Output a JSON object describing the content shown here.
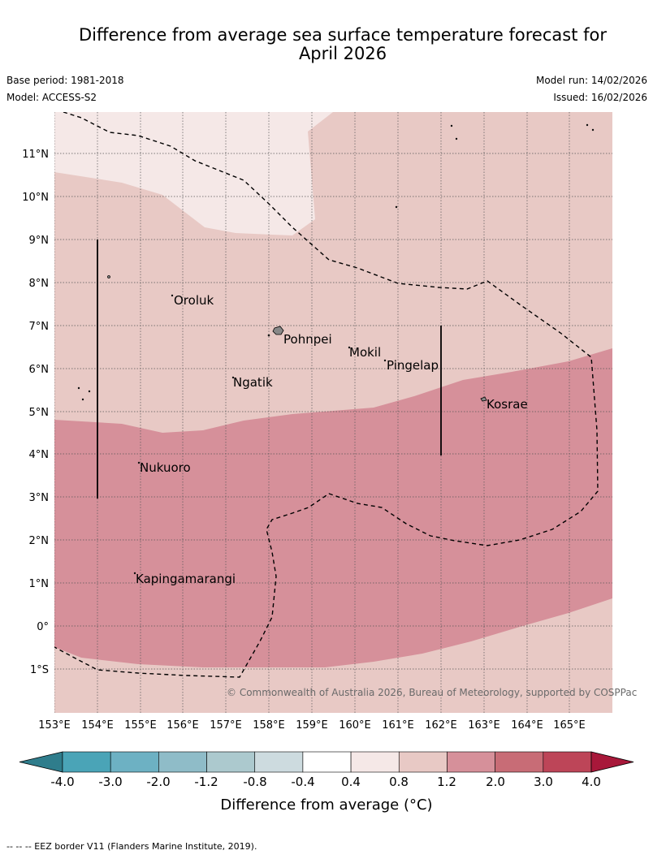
{
  "title_line1": "Difference from average sea surface temperature forecast for",
  "title_line2": "April 2026",
  "base_period": "Base period: 1981-2018",
  "model": "Model: ACCESS-S2",
  "model_run": "Model run: 14/02/2026",
  "issued": "Issued: 16/02/2026",
  "copyright": "© Commonwealth of Australia 2026, Bureau of Meteorology, supported by COSPPac",
  "lon_labels": [
    "153°E",
    "154°E",
    "155°E",
    "156°E",
    "157°E",
    "158°E",
    "159°E",
    "160°E",
    "161°E",
    "162°E",
    "163°E",
    "164°E",
    "165°E"
  ],
  "lat_labels": [
    "11°N",
    "10°N",
    "9°N",
    "8°N",
    "7°N",
    "6°N",
    "5°N",
    "4°N",
    "3°N",
    "2°N",
    "1°N",
    "0°",
    "1°S"
  ],
  "places": [
    "Oroluk",
    "Pohnpei",
    "Mokil",
    "Pingelap",
    "Ngatik",
    "Kosrae",
    "Nukuoro",
    "Kapingamarangi"
  ],
  "colorbar": {
    "label": "Difference from average (°C)",
    "ticks": [
      "-4.0",
      "-3.0",
      "-2.0",
      "-1.2",
      "-0.8",
      "-0.4",
      "0.4",
      "0.8",
      "1.2",
      "2.0",
      "3.0",
      "4.0"
    ],
    "colors": [
      "#2f7d8c",
      "#4aa4b7",
      "#6db1c3",
      "#8fbcc8",
      "#acc9ce",
      "#cddbdf",
      "#ffffff",
      "#f5e8e7",
      "#e8c9c5",
      "#d6909a",
      "#c86c76",
      "#bd4558",
      "#a8183a"
    ]
  },
  "footnote": "-- -- -- EEZ border V11 (Flanders Marine Institute, 2019)."
}
